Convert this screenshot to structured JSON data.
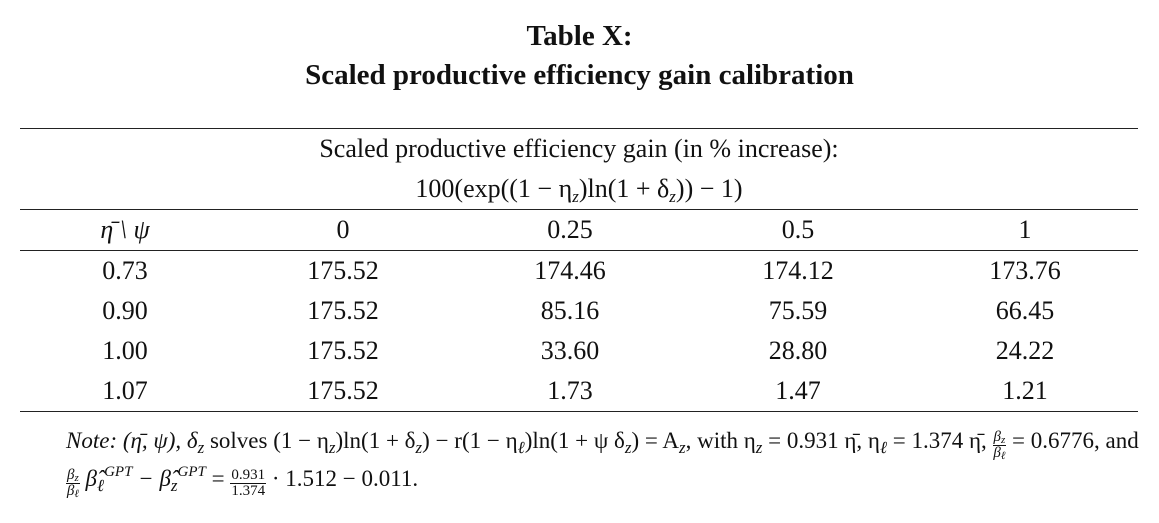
{
  "title": {
    "line1": "Table X:",
    "line2": "Scaled productive efficiency gain calibration"
  },
  "table": {
    "caption": "Scaled productive efficiency gain (in % increase):",
    "formula": [
      "100(exp((1 − η",
      "z",
      ")ln(1 + δ",
      "z",
      ")) − 1)"
    ],
    "columns": [
      "η̄ \\ ψ",
      "0",
      "0.25",
      "0.5",
      "1"
    ],
    "rows": [
      [
        "0.73",
        "175.52",
        "174.46",
        "174.12",
        "173.76"
      ],
      [
        "0.90",
        "175.52",
        "85.16",
        "75.59",
        "66.45"
      ],
      [
        "1.00",
        "175.52",
        "33.60",
        "28.80",
        "24.22"
      ],
      [
        "1.07",
        "175.52",
        "1.73",
        "1.47",
        "1.21"
      ]
    ]
  },
  "note": [
    "Note:",
    " (η̄, ψ), δ",
    "z",
    " solves (1 − η",
    "z",
    ")ln(1 + δ",
    "z",
    ") − r(1 − η",
    "ℓ",
    ")ln(1 + ψ δ",
    "z",
    ") = A",
    "z",
    ", with η",
    "z",
    " = 0.931 η̄, η",
    "ℓ",
    " = 1.374 η̄, ",
    "β",
    "z",
    "β",
    "ℓ",
    " = 0.6776, and ",
    "β",
    "z",
    "β",
    "ℓ",
    " β̂",
    "ℓ",
    "GPT",
    " − β̂",
    "z",
    "GPT",
    " = ",
    "0.931",
    "1.374",
    " · 1.512 − 0.011."
  ]
}
